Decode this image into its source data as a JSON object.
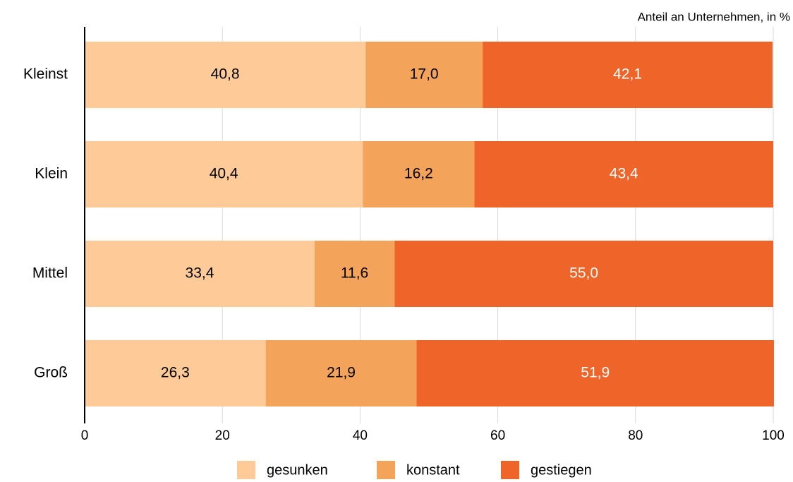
{
  "chart_data": {
    "type": "stacked_barh",
    "axis_label": "Anteil an Unternehmen, in %",
    "categories": [
      "Kleinst",
      "Klein",
      "Mittel",
      "Groß"
    ],
    "series": [
      {
        "name": "gesunken",
        "color": "#fdca98",
        "values": [
          40.8,
          40.4,
          33.4,
          26.3
        ],
        "value_labels": [
          "40,8",
          "40,4",
          "33,4",
          "26,3"
        ]
      },
      {
        "name": "konstant",
        "color": "#f4a35a",
        "values": [
          17.0,
          16.2,
          11.6,
          21.9
        ],
        "value_labels": [
          "17,0",
          "16,2",
          "11,6",
          "21,9"
        ]
      },
      {
        "name": "gestiegen",
        "color": "#ef6428",
        "values": [
          42.1,
          43.4,
          55.0,
          51.9
        ],
        "value_labels": [
          "42,1",
          "43,4",
          "55,0",
          "51,9"
        ]
      }
    ],
    "xlim": [
      0,
      100
    ],
    "xticks": [
      0,
      20,
      40,
      60,
      80,
      100
    ],
    "grid": true,
    "legend": "bottom"
  }
}
